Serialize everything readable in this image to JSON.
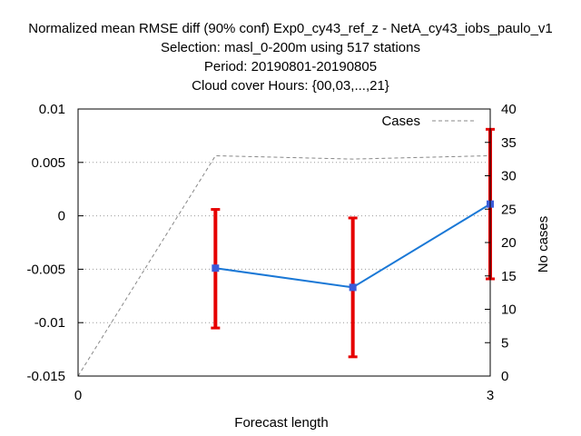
{
  "chart_data": {
    "type": "line",
    "title_lines": [
      "Normalized mean RMSE diff (90% conf) Exp0_cy43_ref_z - NetA_cy43_iobs_paulo_v1",
      "Selection: masl_0-200m using   517 stations",
      "Period: 20190801-20190805",
      "Cloud cover   Hours: {00,03,...,21}"
    ],
    "xlabel": "Forecast length",
    "ylabel_right": "No cases",
    "xlim": [
      0,
      3
    ],
    "ylim": [
      -0.015,
      0.01
    ],
    "y2lim": [
      0,
      40
    ],
    "x_ticks": [
      {
        "value": 0,
        "label": "0"
      },
      {
        "value": 3,
        "label": "3"
      }
    ],
    "y_ticks": [
      {
        "value": 0.01,
        "label": "0.01"
      },
      {
        "value": 0.005,
        "label": "0.005"
      },
      {
        "value": 0,
        "label": "0"
      },
      {
        "value": -0.005,
        "label": "-0.005"
      },
      {
        "value": -0.01,
        "label": "-0.01"
      },
      {
        "value": -0.015,
        "label": "-0.015"
      }
    ],
    "y2_ticks": [
      {
        "value": 40,
        "label": "40"
      },
      {
        "value": 35,
        "label": "35"
      },
      {
        "value": 30,
        "label": "30"
      },
      {
        "value": 25,
        "label": "25"
      },
      {
        "value": 20,
        "label": "20"
      },
      {
        "value": 15,
        "label": "15"
      },
      {
        "value": 10,
        "label": "10"
      },
      {
        "value": 5,
        "label": "5"
      },
      {
        "value": 0,
        "label": "0"
      }
    ],
    "grid": "horizontal-dotted",
    "legend_position": "top-right",
    "series": [
      {
        "kind": "line-with-errorbars",
        "color": "#1a78d6",
        "marker_color": "#3b5bd9",
        "errorbar_color": "#e60000",
        "x": [
          1,
          2,
          3
        ],
        "y": [
          -0.0049,
          -0.0067,
          0.0011
        ],
        "err_low": [
          -0.0105,
          -0.0132,
          -0.0059
        ],
        "err_high": [
          0.0006,
          -0.0002,
          0.0081
        ]
      },
      {
        "name": "Cases",
        "kind": "dashed-line",
        "axis": "right",
        "color": "#888888",
        "x": [
          0,
          1,
          2,
          3
        ],
        "y": [
          0,
          33,
          32.5,
          33
        ]
      }
    ]
  }
}
